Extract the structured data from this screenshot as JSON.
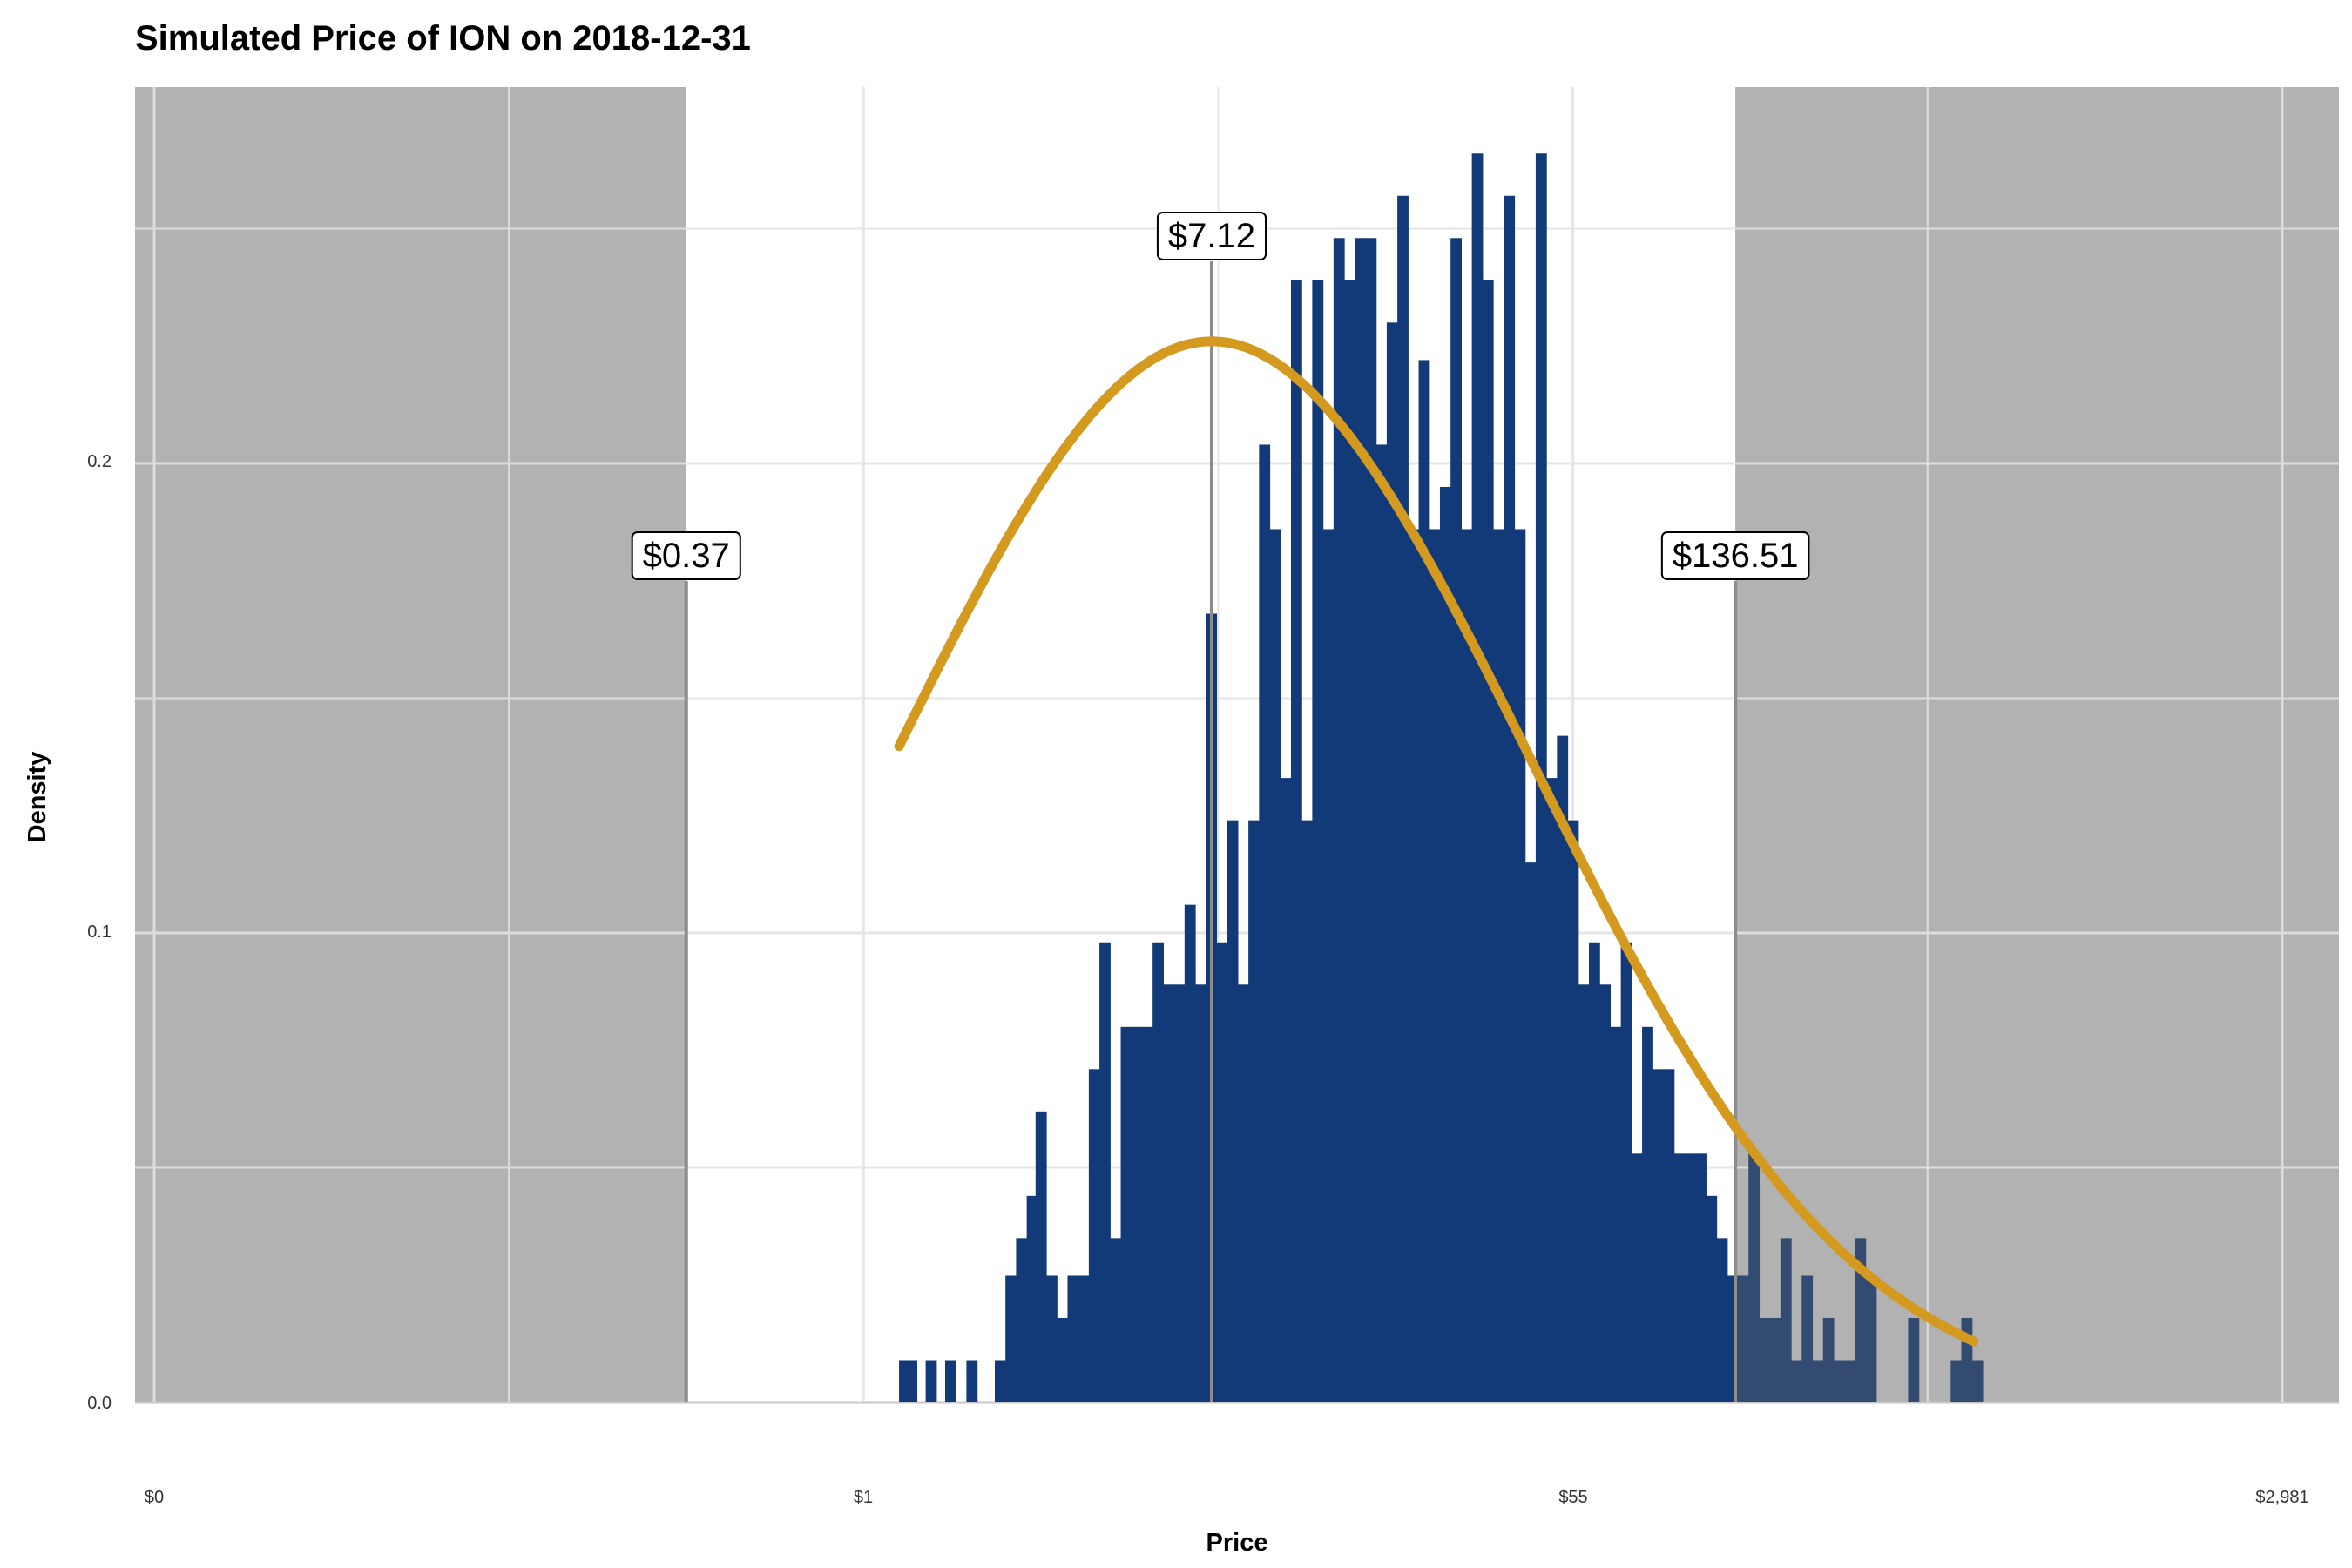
{
  "chart_data": {
    "type": "histogram",
    "title": "Simulated Price of ION on 2018-12-31",
    "xlabel": "Price",
    "ylabel": "Density",
    "x_scale": "log",
    "x_tick_labels": [
      "$0",
      "$1",
      "$55",
      "$2,981"
    ],
    "y_ticks": [
      "0.0",
      "0.1",
      "0.2"
    ],
    "ylim": [
      0,
      0.27
    ],
    "grid": true,
    "colors": {
      "bars": "#123a78",
      "bars_shaded": "#26406b",
      "shade": "#b5b5b5",
      "curve": "#d4991f",
      "marker_line": "#8c8c8c"
    },
    "annotations": [
      {
        "label": "$0.37",
        "log_price": -1.0
      },
      {
        "label": "$7.12",
        "log_price": 1.963
      },
      {
        "label": "$136.51",
        "log_price": 4.916
      }
    ],
    "shaded_regions": [
      {
        "from": "$0",
        "to": "$0.37"
      },
      {
        "from": "$136.51",
        "to": "$2,981"
      }
    ],
    "normal_curve": {
      "peak_density": 0.226
    },
    "bars": [
      [
        0.23,
        0.009
      ],
      [
        0.27,
        0.009
      ],
      [
        0.38,
        0.009
      ],
      [
        0.4,
        0.0
      ],
      [
        0.44,
        0.0
      ],
      [
        0.49,
        0.009
      ],
      [
        0.55,
        0.0
      ],
      [
        0.61,
        0.009
      ],
      [
        0.66,
        0.0
      ],
      [
        0.72,
        0.0
      ],
      [
        0.77,
        0.009
      ],
      [
        0.83,
        0.027
      ],
      [
        0.89,
        0.035
      ],
      [
        0.95,
        0.044
      ],
      [
        1.0,
        0.062
      ],
      [
        1.06,
        0.027
      ],
      [
        1.12,
        0.018
      ],
      [
        1.18,
        0.027
      ],
      [
        1.24,
        0.027
      ],
      [
        1.3,
        0.071
      ],
      [
        1.36,
        0.098
      ],
      [
        1.42,
        0.035
      ],
      [
        1.48,
        0.08
      ],
      [
        1.54,
        0.08
      ],
      [
        1.6,
        0.08
      ],
      [
        1.66,
        0.098
      ],
      [
        1.72,
        0.089
      ],
      [
        1.78,
        0.089
      ],
      [
        1.84,
        0.106
      ],
      [
        1.9,
        0.089
      ],
      [
        1.96,
        0.168
      ],
      [
        2.02,
        0.098
      ],
      [
        2.08,
        0.124
      ],
      [
        2.14,
        0.089
      ],
      [
        2.2,
        0.124
      ],
      [
        2.26,
        0.204
      ],
      [
        2.32,
        0.186
      ],
      [
        2.38,
        0.133
      ],
      [
        2.44,
        0.239
      ],
      [
        2.5,
        0.124
      ],
      [
        2.56,
        0.239
      ],
      [
        2.62,
        0.186
      ],
      [
        2.68,
        0.248
      ],
      [
        2.74,
        0.239
      ],
      [
        2.8,
        0.248
      ],
      [
        2.86,
        0.248
      ],
      [
        2.92,
        0.204
      ],
      [
        2.98,
        0.23
      ],
      [
        3.04,
        0.257
      ],
      [
        3.1,
        0.186
      ],
      [
        3.16,
        0.222
      ],
      [
        3.22,
        0.186
      ],
      [
        3.28,
        0.195
      ],
      [
        3.34,
        0.248
      ],
      [
        3.4,
        0.186
      ],
      [
        3.46,
        0.266
      ],
      [
        3.52,
        0.239
      ],
      [
        3.58,
        0.186
      ],
      [
        3.64,
        0.257
      ],
      [
        3.7,
        0.186
      ],
      [
        3.76,
        0.115
      ],
      [
        3.82,
        0.266
      ],
      [
        3.88,
        0.133
      ],
      [
        3.94,
        0.142
      ],
      [
        4.0,
        0.124
      ],
      [
        4.06,
        0.089
      ],
      [
        4.12,
        0.098
      ],
      [
        4.18,
        0.089
      ],
      [
        4.24,
        0.08
      ],
      [
        4.3,
        0.098
      ],
      [
        4.36,
        0.053
      ],
      [
        4.42,
        0.08
      ],
      [
        4.48,
        0.071
      ],
      [
        4.54,
        0.071
      ],
      [
        4.6,
        0.053
      ],
      [
        4.66,
        0.053
      ],
      [
        4.72,
        0.053
      ],
      [
        4.78,
        0.044
      ],
      [
        4.84,
        0.035
      ],
      [
        4.9,
        0.027
      ],
      [
        4.96,
        0.027
      ],
      [
        5.02,
        0.053
      ],
      [
        5.08,
        0.018
      ],
      [
        5.14,
        0.018
      ],
      [
        5.2,
        0.035
      ],
      [
        5.26,
        0.009
      ],
      [
        5.32,
        0.027
      ],
      [
        5.38,
        0.009
      ],
      [
        5.44,
        0.018
      ],
      [
        5.5,
        0.009
      ],
      [
        5.56,
        0.009
      ],
      [
        5.62,
        0.035
      ],
      [
        5.68,
        0.027
      ],
      [
        5.74,
        0.0
      ],
      [
        5.8,
        0.0
      ],
      [
        5.86,
        0.0
      ],
      [
        5.92,
        0.018
      ],
      [
        5.98,
        0.0
      ],
      [
        6.04,
        0.0
      ],
      [
        6.1,
        0.0
      ],
      [
        6.16,
        0.009
      ],
      [
        6.22,
        0.018
      ],
      [
        6.28,
        0.009
      ]
    ]
  }
}
